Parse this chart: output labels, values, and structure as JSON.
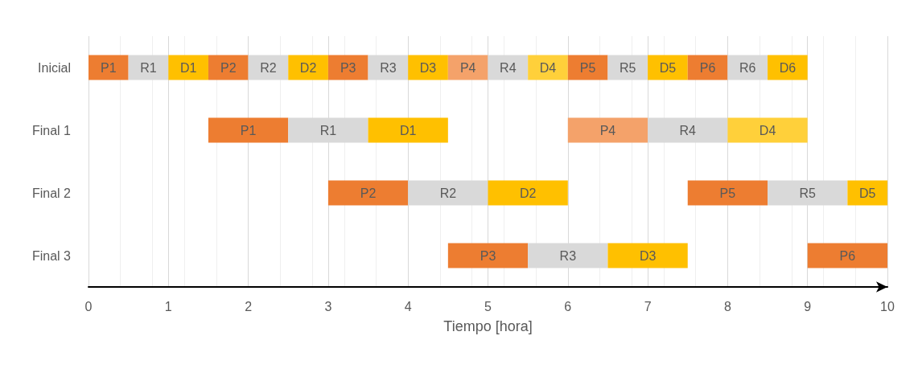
{
  "chart_data": {
    "type": "bar",
    "orientation": "horizontal",
    "xlabel": "Tiempo [hora]",
    "categories": [
      "Inicial",
      "Final 1",
      "Final 2",
      "Final 3"
    ],
    "xlim": [
      0,
      10
    ],
    "xticks": [
      0,
      1,
      2,
      3,
      4,
      5,
      6,
      7,
      8,
      9,
      10
    ],
    "grid": "x",
    "series": [
      {
        "base": [
          0,
          1.5,
          3,
          4.5
        ],
        "values": [
          0.5,
          1,
          1,
          1
        ],
        "value_labels": [
          "P1",
          "P1",
          "P2",
          "P3"
        ],
        "colors": [
          "#ed7d31",
          "#ed7d31",
          "#ed7d31",
          "#ed7d31"
        ]
      },
      {
        "base": [
          0.5,
          2.5,
          4,
          5.5
        ],
        "values": [
          0.5,
          1,
          1,
          1
        ],
        "value_labels": [
          "R1",
          "R1",
          "R2",
          "R3"
        ],
        "colors": [
          "#d9d9d9",
          "#d9d9d9",
          "#d9d9d9",
          "#d9d9d9"
        ]
      },
      {
        "base": [
          1,
          3.5,
          5,
          6.5
        ],
        "values": [
          0.5,
          1,
          1,
          1
        ],
        "value_labels": [
          "D1",
          "D1",
          "D2",
          "D3"
        ],
        "colors": [
          "#ffc000",
          "#ffc000",
          "#ffc000",
          "#ffc000"
        ]
      },
      {
        "base": [
          1.5,
          6,
          7.5,
          9
        ],
        "values": [
          0.5,
          1,
          1,
          1
        ],
        "value_labels": [
          "P2",
          "P4",
          "P5",
          "P6"
        ],
        "colors": [
          "#ed7d31",
          "#f4a26a",
          "#ed7d31",
          "#ed7d31"
        ]
      },
      {
        "base": [
          2,
          7,
          8.5,
          null
        ],
        "values": [
          0.5,
          1,
          1,
          null
        ],
        "value_labels": [
          "R2",
          "R4",
          "R5",
          null
        ],
        "colors": [
          "#d9d9d9",
          "#d9d9d9",
          "#d9d9d9",
          null
        ]
      },
      {
        "base": [
          2.5,
          8,
          9.5,
          null
        ],
        "values": [
          0.5,
          1,
          0.5,
          null
        ],
        "value_labels": [
          "D2",
          "D4",
          "D5",
          null
        ],
        "colors": [
          "#ffc000",
          "#ffd03a",
          "#ffc000",
          null
        ]
      },
      {
        "base": [
          3,
          null,
          null,
          null
        ],
        "values": [
          0.5,
          null,
          null,
          null
        ],
        "value_labels": [
          "P3",
          null,
          null,
          null
        ],
        "colors": [
          "#ed7d31",
          null,
          null,
          null
        ]
      },
      {
        "base": [
          3.5,
          null,
          null,
          null
        ],
        "values": [
          0.5,
          null,
          null,
          null
        ],
        "value_labels": [
          "R3",
          null,
          null,
          null
        ],
        "colors": [
          "#d9d9d9",
          null,
          null,
          null
        ]
      },
      {
        "base": [
          4,
          null,
          null,
          null
        ],
        "values": [
          0.5,
          null,
          null,
          null
        ],
        "value_labels": [
          "D3",
          null,
          null,
          null
        ],
        "colors": [
          "#ffc000",
          null,
          null,
          null
        ]
      },
      {
        "base": [
          4.5,
          null,
          null,
          null
        ],
        "values": [
          0.5,
          null,
          null,
          null
        ],
        "value_labels": [
          "P4",
          null,
          null,
          null
        ],
        "colors": [
          "#f4a26a",
          null,
          null,
          null
        ]
      },
      {
        "base": [
          5,
          null,
          null,
          null
        ],
        "values": [
          0.5,
          null,
          null,
          null
        ],
        "value_labels": [
          "R4",
          null,
          null,
          null
        ],
        "colors": [
          "#d9d9d9",
          null,
          null,
          null
        ]
      },
      {
        "base": [
          5.5,
          null,
          null,
          null
        ],
        "values": [
          0.5,
          null,
          null,
          null
        ],
        "value_labels": [
          "D4",
          null,
          null,
          null
        ],
        "colors": [
          "#ffd03a",
          null,
          null,
          null
        ]
      },
      {
        "base": [
          6,
          null,
          null,
          null
        ],
        "values": [
          0.5,
          null,
          null,
          null
        ],
        "value_labels": [
          "P5",
          null,
          null,
          null
        ],
        "colors": [
          "#ed7d31",
          null,
          null,
          null
        ]
      },
      {
        "base": [
          6.5,
          null,
          null,
          null
        ],
        "values": [
          0.5,
          null,
          null,
          null
        ],
        "value_labels": [
          "R5",
          null,
          null,
          null
        ],
        "colors": [
          "#d9d9d9",
          null,
          null,
          null
        ]
      },
      {
        "base": [
          7,
          null,
          null,
          null
        ],
        "values": [
          0.5,
          null,
          null,
          null
        ],
        "value_labels": [
          "D5",
          null,
          null,
          null
        ],
        "colors": [
          "#ffc000",
          null,
          null,
          null
        ]
      },
      {
        "base": [
          7.5,
          null,
          null,
          null
        ],
        "values": [
          0.5,
          null,
          null,
          null
        ],
        "value_labels": [
          "P6",
          null,
          null,
          null
        ],
        "colors": [
          "#ed7d31",
          null,
          null,
          null
        ]
      },
      {
        "base": [
          8,
          null,
          null,
          null
        ],
        "values": [
          0.5,
          null,
          null,
          null
        ],
        "value_labels": [
          "R6",
          null,
          null,
          null
        ],
        "colors": [
          "#d9d9d9",
          null,
          null,
          null
        ]
      },
      {
        "base": [
          8.5,
          null,
          null,
          null
        ],
        "values": [
          0.5,
          null,
          null,
          null
        ],
        "value_labels": [
          "D6",
          null,
          null,
          null
        ],
        "colors": [
          "#ffc000",
          null,
          null,
          null
        ]
      }
    ]
  }
}
